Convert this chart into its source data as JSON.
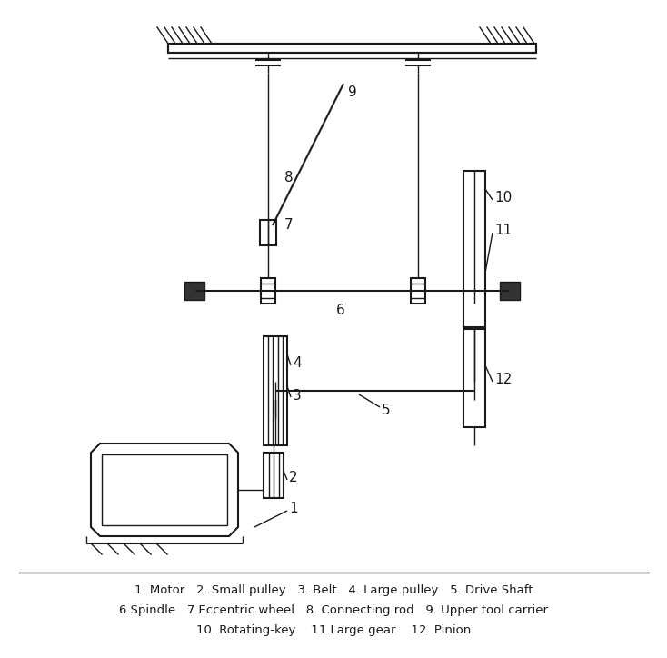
{
  "bg_color": "#ffffff",
  "line_color": "#1a1a1a",
  "legend_text": [
    "1. Motor   2. Small pulley   3. Belt   4. Large pulley   5. Drive Shaft",
    "6.Spindle   7.Eccentric wheel   8. Connecting rod   9. Upper tool carrier",
    "10. Rotating-key    11.Large gear    12. Pinion"
  ],
  "figsize": [
    7.34,
    7.24
  ]
}
